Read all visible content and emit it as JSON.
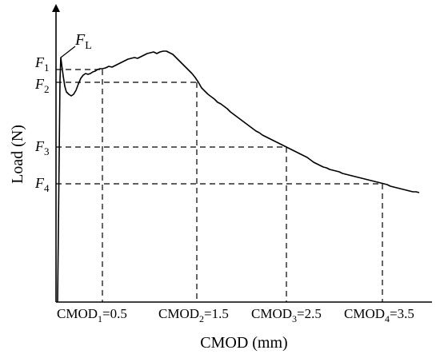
{
  "chart_data": {
    "type": "line",
    "xlabel": "CMOD (mm)",
    "ylabel": "Load (N)",
    "curve_label": {
      "main": "F",
      "sub": "L"
    },
    "y_markers": [
      {
        "main": "F",
        "sub": "1"
      },
      {
        "main": "F",
        "sub": "2"
      },
      {
        "main": "F",
        "sub": "3"
      },
      {
        "main": "F",
        "sub": "4"
      }
    ],
    "x_markers": [
      {
        "main": "CMOD",
        "sub": "1",
        "value": "=0.5"
      },
      {
        "main": "CMOD",
        "sub": "2",
        "value": "=1.5"
      },
      {
        "main": "CMOD",
        "sub": "3",
        "value": "=2.5"
      },
      {
        "main": "CMOD",
        "sub": "4",
        "value": "=3.5"
      }
    ],
    "grid": false,
    "legend": "none"
  }
}
